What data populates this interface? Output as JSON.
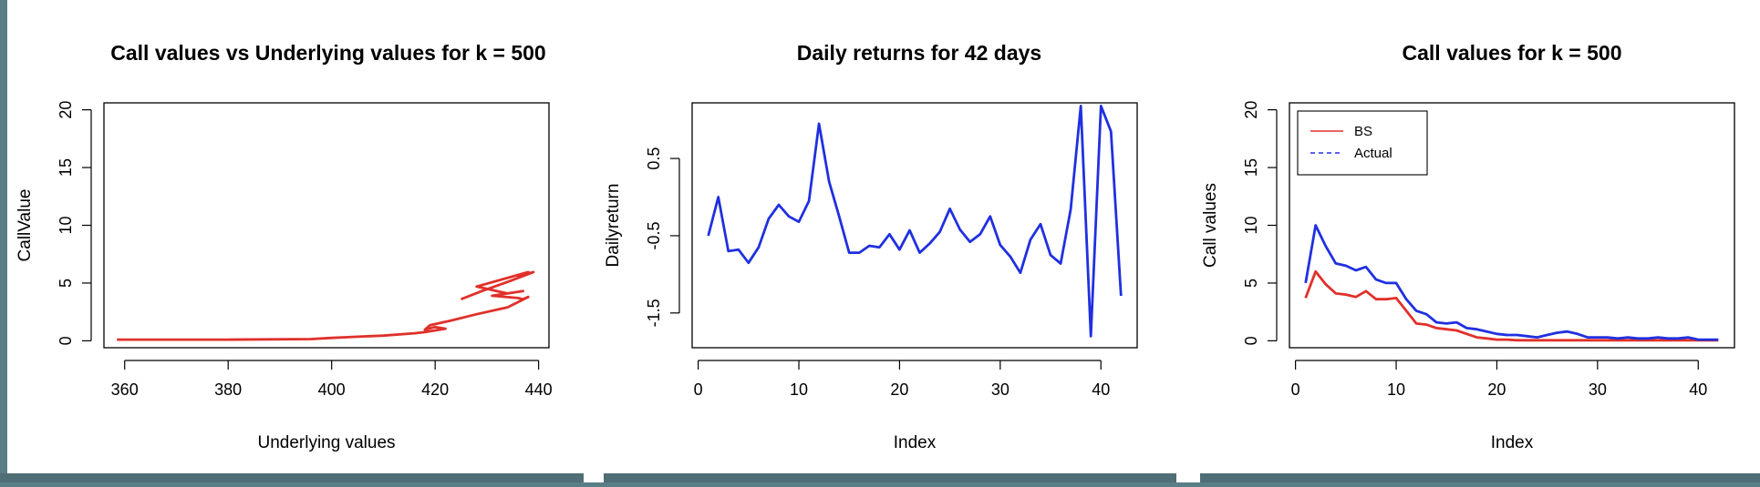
{
  "chart_data": [
    {
      "type": "line",
      "title": "Call values vs Underlying values for k = 500",
      "xlabel": "Underlying values",
      "ylabel": "CallValue",
      "xlim": [
        356,
        442
      ],
      "ylim": [
        -0.6,
        20.6
      ],
      "xticks": [
        360,
        380,
        400,
        420,
        440
      ],
      "yticks": [
        0,
        5,
        10,
        15,
        20
      ],
      "color": "#e0302a",
      "series": [
        {
          "x": [
            358.5,
            380,
            396,
            400,
            405,
            410,
            416,
            418,
            422,
            420,
            418,
            419,
            423,
            428,
            434,
            438,
            437,
            436,
            431,
            437,
            434,
            433,
            428,
            438,
            436,
            439,
            434,
            429,
            425
          ],
          "y": [
            0.1,
            0.1,
            0.15,
            0.25,
            0.35,
            0.45,
            0.65,
            0.75,
            1.05,
            1.2,
            0.95,
            1.35,
            1.75,
            2.3,
            2.9,
            3.8,
            3.6,
            3.7,
            3.9,
            4.3,
            4.1,
            4.2,
            4.7,
            5.95,
            5.6,
            5.95,
            5.1,
            4.3,
            3.6
          ]
        }
      ]
    },
    {
      "type": "line",
      "title": "Daily returns for 42 days",
      "xlabel": "Index",
      "ylabel": "Dailyreturn",
      "xlim": [
        -0.6,
        43.6
      ],
      "ylim": [
        -1.95,
        1.22
      ],
      "xticks": [
        0,
        10,
        20,
        30,
        40
      ],
      "yticks": [
        0.5,
        -0.5,
        -1.5
      ],
      "color": "#2030e0",
      "series": [
        {
          "x": [
            1,
            2,
            3,
            4,
            5,
            6,
            7,
            8,
            9,
            10,
            11,
            12,
            13,
            14,
            15,
            16,
            17,
            18,
            19,
            20,
            21,
            22,
            23,
            24,
            25,
            26,
            27,
            28,
            29,
            30,
            31,
            32,
            33,
            34,
            35,
            36,
            37,
            38,
            39,
            40,
            41,
            42
          ],
          "y": [
            -0.5,
            0.0,
            -0.7,
            -0.68,
            -0.85,
            -0.65,
            -0.28,
            -0.1,
            -0.25,
            -0.32,
            -0.05,
            0.95,
            0.2,
            -0.25,
            -0.72,
            -0.72,
            -0.63,
            -0.65,
            -0.48,
            -0.68,
            -0.43,
            -0.72,
            -0.6,
            -0.45,
            -0.15,
            -0.42,
            -0.58,
            -0.48,
            -0.25,
            -0.62,
            -0.77,
            -0.98,
            -0.55,
            -0.35,
            -0.75,
            -0.86,
            -0.16,
            1.18,
            -1.8,
            1.18,
            0.85,
            -1.28
          ]
        }
      ]
    },
    {
      "type": "line",
      "title": "Call values for k = 500",
      "xlabel": "Index",
      "ylabel": "Call values",
      "xlim": [
        -0.6,
        43.6
      ],
      "ylim": [
        -0.6,
        20.6
      ],
      "xticks": [
        0,
        10,
        20,
        30,
        40
      ],
      "yticks": [
        0,
        5,
        10,
        15,
        20
      ],
      "legend": {
        "position": "top-left"
      },
      "series": [
        {
          "name": "BS",
          "color": "#e0302a",
          "dash": "solid",
          "x": [
            1,
            2,
            3,
            4,
            5,
            6,
            7,
            8,
            9,
            10,
            11,
            12,
            13,
            14,
            15,
            16,
            17,
            18,
            19,
            20,
            21,
            22,
            23,
            24,
            25,
            26,
            27,
            28,
            29,
            30,
            31,
            32,
            33,
            34,
            35,
            36,
            37,
            38,
            39,
            40,
            41,
            42
          ],
          "y": [
            3.7,
            6.0,
            4.9,
            4.1,
            4.0,
            3.8,
            4.3,
            3.6,
            3.6,
            3.7,
            2.6,
            1.5,
            1.4,
            1.1,
            1.0,
            0.9,
            0.6,
            0.3,
            0.2,
            0.1,
            0.1,
            0.05,
            0.05,
            0.05,
            0.05,
            0.05,
            0.05,
            0.05,
            0.05,
            0.05,
            0.05,
            0.05,
            0.05,
            0.05,
            0.05,
            0.05,
            0.05,
            0.05,
            0.05,
            0.05,
            0.05,
            0.05
          ]
        },
        {
          "name": "Actual",
          "color": "#2030e0",
          "dash": "dashed",
          "x": [
            1,
            2,
            3,
            4,
            5,
            6,
            7,
            8,
            9,
            10,
            11,
            12,
            13,
            14,
            15,
            16,
            17,
            18,
            19,
            20,
            21,
            22,
            23,
            24,
            25,
            26,
            27,
            28,
            29,
            30,
            31,
            32,
            33,
            34,
            35,
            36,
            37,
            38,
            39,
            40,
            41,
            42
          ],
          "y": [
            5.0,
            10.0,
            8.2,
            6.7,
            6.5,
            6.1,
            6.4,
            5.3,
            5.0,
            5.0,
            3.6,
            2.6,
            2.3,
            1.6,
            1.5,
            1.6,
            1.1,
            1.0,
            0.8,
            0.6,
            0.5,
            0.5,
            0.4,
            0.3,
            0.5,
            0.7,
            0.8,
            0.6,
            0.3,
            0.3,
            0.3,
            0.2,
            0.3,
            0.2,
            0.2,
            0.3,
            0.2,
            0.2,
            0.3,
            0.1,
            0.1,
            0.1
          ]
        }
      ]
    }
  ]
}
